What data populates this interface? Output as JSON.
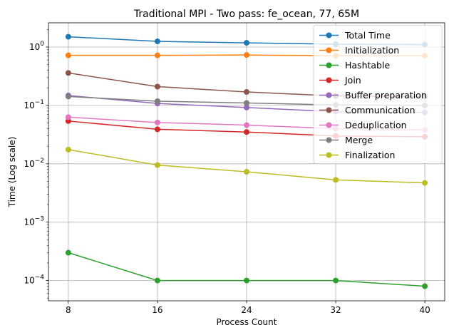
{
  "chart_data": {
    "type": "line",
    "title": "Traditional MPI - Two pass: fe_ocean, 77, 65M",
    "xlabel": "Process Count",
    "ylabel": "Time (Log scale)",
    "y_scale": "log",
    "x": [
      8,
      16,
      24,
      32,
      40
    ],
    "x_ticks": [
      "8",
      "16",
      "24",
      "32",
      "40"
    ],
    "ylim": [
      4.5e-05,
      2.6
    ],
    "y_ticks": [
      {
        "value": 0.0001,
        "base": "10",
        "exp": "−4"
      },
      {
        "value": 0.001,
        "base": "10",
        "exp": "−3"
      },
      {
        "value": 0.01,
        "base": "10",
        "exp": "−2"
      },
      {
        "value": 0.1,
        "base": "10",
        "exp": "−1"
      },
      {
        "value": 1,
        "base": "10",
        "exp": "0"
      }
    ],
    "grid": true,
    "legend_position": "top-right",
    "series": [
      {
        "name": "Total Time",
        "color": "#1f77b4",
        "values": [
          1.5,
          1.25,
          1.18,
          1.12,
          1.1
        ]
      },
      {
        "name": "Initialization",
        "color": "#ff7f0e",
        "values": [
          0.72,
          0.72,
          0.73,
          0.71,
          0.71
        ]
      },
      {
        "name": "Hashtable",
        "color": "#2ca02c",
        "values": [
          0.0003,
          0.0001,
          0.0001,
          0.0001,
          8e-05
        ]
      },
      {
        "name": "Join",
        "color": "#d62728",
        "values": [
          0.054,
          0.039,
          0.035,
          0.03,
          0.029
        ]
      },
      {
        "name": "Buffer preparation",
        "color": "#9467bd",
        "values": [
          0.148,
          0.108,
          0.092,
          0.078,
          0.076
        ]
      },
      {
        "name": "Communication",
        "color": "#8c564b",
        "values": [
          0.36,
          0.21,
          0.17,
          0.145,
          0.14
        ]
      },
      {
        "name": "Deduplication",
        "color": "#e377c2",
        "values": [
          0.063,
          0.051,
          0.046,
          0.04,
          0.038
        ]
      },
      {
        "name": "Merge",
        "color": "#7f7f7f",
        "values": [
          0.142,
          0.118,
          0.11,
          0.102,
          0.1
        ]
      },
      {
        "name": "Finalization",
        "color": "#bcbd22",
        "values": [
          0.0175,
          0.0095,
          0.0073,
          0.0053,
          0.0047
        ]
      }
    ]
  }
}
